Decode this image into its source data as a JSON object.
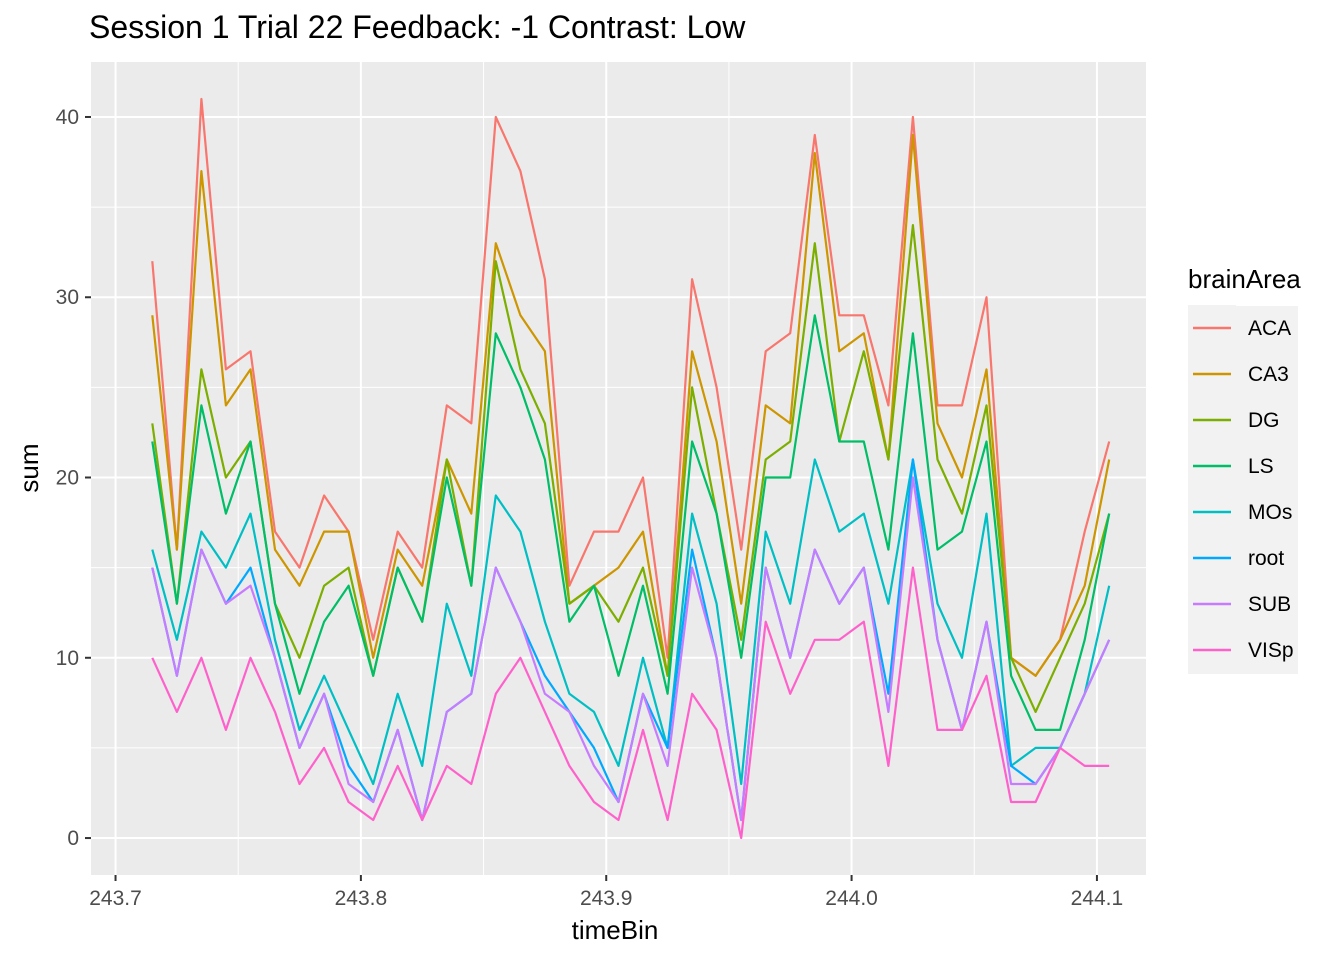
{
  "chart_data": {
    "type": "line",
    "title": "Session 1 Trial 22 Feedback: -1 Contrast: Low",
    "xlabel": "timeBin",
    "ylabel": "sum",
    "xlim": [
      243.69,
      244.12
    ],
    "ylim": [
      -2.05,
      43.05
    ],
    "x_ticks": [
      243.7,
      243.8,
      243.9,
      244.0,
      244.1
    ],
    "x_tick_labels": [
      "243.7",
      "243.8",
      "243.9",
      "244.0",
      "244.1"
    ],
    "y_ticks": [
      0,
      10,
      20,
      30,
      40
    ],
    "y_tick_labels": [
      "0",
      "10",
      "20",
      "30",
      "40"
    ],
    "grid": true,
    "legend": {
      "title": "brainArea",
      "position": "right"
    },
    "x": [
      243.715,
      243.725,
      243.735,
      243.745,
      243.755,
      243.765,
      243.775,
      243.785,
      243.795,
      243.805,
      243.815,
      243.825,
      243.835,
      243.845,
      243.855,
      243.865,
      243.875,
      243.885,
      243.895,
      243.905,
      243.915,
      243.925,
      243.935,
      243.945,
      243.955,
      243.965,
      243.975,
      243.985,
      243.995,
      244.005,
      244.015,
      244.025,
      244.035,
      244.045,
      244.055,
      244.065,
      244.075,
      244.085,
      244.095,
      244.105
    ],
    "series": [
      {
        "name": "ACA",
        "color": "#F8766D",
        "values": [
          32,
          16,
          41,
          26,
          27,
          17,
          15,
          19,
          17,
          11,
          17,
          15,
          24,
          23,
          40,
          37,
          31,
          14,
          17,
          17,
          20,
          10,
          31,
          25,
          16,
          27,
          28,
          39,
          29,
          29,
          24,
          40,
          24,
          24,
          30,
          10,
          9,
          11,
          17,
          22
        ]
      },
      {
        "name": "CA3",
        "color": "#CD9600",
        "values": [
          29,
          16,
          37,
          24,
          26,
          16,
          14,
          17,
          17,
          10,
          16,
          14,
          21,
          18,
          33,
          29,
          27,
          13,
          14,
          15,
          17,
          9,
          27,
          22,
          13,
          24,
          23,
          38,
          27,
          28,
          21,
          39,
          23,
          20,
          26,
          10,
          9,
          11,
          14,
          21
        ]
      },
      {
        "name": "DG",
        "color": "#7CAE00",
        "values": [
          23,
          13,
          26,
          20,
          22,
          13,
          10,
          14,
          15,
          9,
          15,
          12,
          21,
          14,
          32,
          26,
          23,
          13,
          14,
          12,
          15,
          9,
          25,
          18,
          11,
          21,
          22,
          33,
          22,
          27,
          21,
          34,
          21,
          18,
          24,
          10,
          7,
          10,
          13,
          18
        ]
      },
      {
        "name": "LS",
        "color": "#00BE67",
        "values": [
          22,
          13,
          24,
          18,
          22,
          13,
          8,
          12,
          14,
          9,
          15,
          12,
          20,
          14,
          28,
          25,
          21,
          12,
          14,
          9,
          14,
          8,
          22,
          18,
          10,
          20,
          20,
          29,
          22,
          22,
          16,
          28,
          16,
          17,
          22,
          9,
          6,
          6,
          11,
          18
        ]
      },
      {
        "name": "MOs",
        "color": "#00BFC4",
        "values": [
          16,
          11,
          17,
          15,
          18,
          11,
          6,
          9,
          6,
          3,
          8,
          4,
          13,
          9,
          19,
          17,
          12,
          8,
          7,
          4,
          10,
          5,
          18,
          13,
          3,
          17,
          13,
          21,
          17,
          18,
          13,
          21,
          13,
          10,
          18,
          4,
          5,
          5,
          8,
          14
        ]
      },
      {
        "name": "root",
        "color": "#00A9FF",
        "values": [
          15,
          9,
          16,
          13,
          15,
          10,
          5,
          8,
          4,
          2,
          6,
          1,
          7,
          8,
          15,
          12,
          9,
          7,
          5,
          2,
          8,
          5,
          16,
          10,
          1,
          15,
          10,
          16,
          13,
          15,
          8,
          21,
          11,
          6,
          12,
          4,
          3,
          5,
          8,
          11
        ]
      },
      {
        "name": "SUB",
        "color": "#C77CFF",
        "values": [
          15,
          9,
          16,
          13,
          14,
          10,
          5,
          8,
          3,
          2,
          6,
          1,
          7,
          8,
          15,
          12,
          8,
          7,
          4,
          2,
          8,
          4,
          15,
          10,
          1,
          15,
          10,
          16,
          13,
          15,
          7,
          20,
          11,
          6,
          12,
          3,
          3,
          5,
          8,
          11
        ]
      },
      {
        "name": "VISp",
        "color": "#FF61CC",
        "values": [
          10,
          7,
          10,
          6,
          10,
          7,
          3,
          5,
          2,
          1,
          4,
          1,
          4,
          3,
          8,
          10,
          7,
          4,
          2,
          1,
          6,
          1,
          8,
          6,
          0,
          12,
          8,
          11,
          11,
          12,
          4,
          15,
          6,
          6,
          9,
          2,
          2,
          5,
          4,
          4
        ]
      }
    ]
  }
}
